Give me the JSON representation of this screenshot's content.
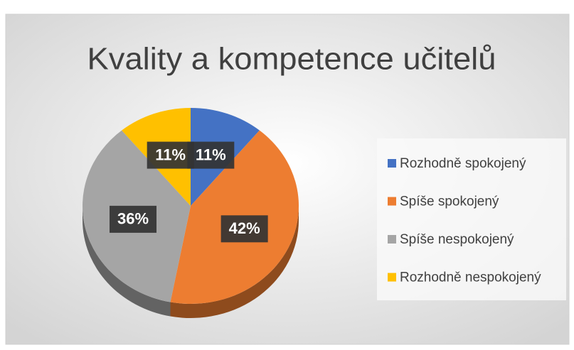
{
  "chart_data": {
    "type": "pie",
    "title": "Kvality a kompetence učitelů",
    "categories": [
      "Rozhodně spokojený",
      "Spíše spokojený",
      "Spíše nespokojený",
      "Rozhodně nespokojený"
    ],
    "values": [
      11,
      42,
      36,
      11
    ],
    "value_labels": [
      "11%",
      "42%",
      "36%",
      "11%"
    ],
    "colors": [
      "#4472c4",
      "#ed7d31",
      "#a5a5a5",
      "#ffc000"
    ],
    "legend": "right"
  }
}
